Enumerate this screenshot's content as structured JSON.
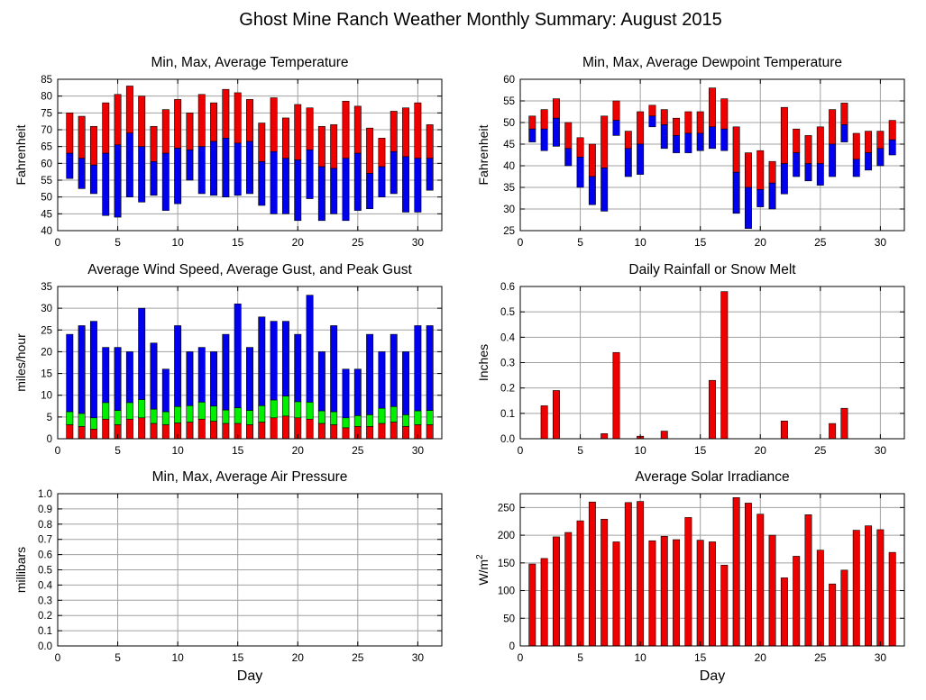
{
  "page": {
    "title": "Ghost Mine Ranch Weather Monthly Summary: August 2015",
    "xlabel": "Day"
  },
  "colors": {
    "red": "#ee0000",
    "blue": "#0000ee",
    "green": "#00ee00",
    "grid": "#a0a0a0"
  },
  "chart_data": [
    {
      "id": "temperature",
      "type": "bar",
      "title": "Min, Max, Average Temperature",
      "ylabel": "Fahrenheit",
      "xlabel": "",
      "xlim": [
        0,
        32
      ],
      "xticks": [
        0,
        5,
        10,
        15,
        20,
        25,
        30
      ],
      "ylim": [
        40,
        85
      ],
      "yticks": [
        40,
        45,
        50,
        55,
        60,
        65,
        70,
        75,
        80,
        85
      ],
      "grid": true,
      "x": [
        1,
        2,
        3,
        4,
        5,
        6,
        7,
        8,
        9,
        10,
        11,
        12,
        13,
        14,
        15,
        16,
        17,
        18,
        19,
        20,
        21,
        22,
        23,
        24,
        25,
        26,
        27,
        28,
        29,
        30,
        31
      ],
      "min": [
        55.5,
        52.5,
        51,
        44.5,
        44,
        50,
        48.5,
        50.5,
        46,
        48,
        55,
        51,
        50.5,
        50,
        50.5,
        51,
        47.5,
        45,
        45,
        43,
        49.5,
        43,
        45,
        43,
        46,
        46.5,
        50,
        51,
        45.5,
        45.5,
        52
      ],
      "avg": [
        63,
        61.5,
        59.5,
        63,
        65.5,
        69,
        65,
        60.5,
        63,
        64.5,
        64,
        65,
        66.5,
        67.5,
        66,
        66.5,
        60.5,
        63.5,
        61.5,
        61,
        64,
        59,
        58.5,
        61.5,
        63,
        57,
        59,
        63.5,
        62,
        61.5,
        61.5
      ],
      "max": [
        75,
        74,
        71,
        78,
        80.5,
        83,
        80,
        71,
        76,
        79,
        75,
        80.5,
        78,
        82,
        81,
        79,
        72,
        79.5,
        73.5,
        77.5,
        76.5,
        71,
        71.5,
        78.5,
        77,
        70.5,
        67.5,
        75.5,
        76.5,
        78,
        71.5
      ]
    },
    {
      "id": "dewpoint",
      "type": "bar",
      "title": "Min, Max, Average Dewpoint Temperature",
      "ylabel": "Fahrenheit",
      "xlabel": "",
      "xlim": [
        0,
        32
      ],
      "xticks": [
        0,
        5,
        10,
        15,
        20,
        25,
        30
      ],
      "ylim": [
        25,
        60
      ],
      "yticks": [
        25,
        30,
        35,
        40,
        45,
        50,
        55,
        60
      ],
      "grid": true,
      "x": [
        1,
        2,
        3,
        4,
        5,
        6,
        7,
        8,
        9,
        10,
        11,
        12,
        13,
        14,
        15,
        16,
        17,
        18,
        19,
        20,
        21,
        22,
        23,
        24,
        25,
        26,
        27,
        28,
        29,
        30,
        31
      ],
      "min": [
        45.5,
        43.5,
        44.5,
        40,
        35,
        31,
        29.5,
        47,
        37.5,
        38,
        49,
        44,
        43,
        43,
        43.5,
        44,
        43.5,
        29,
        25.5,
        30.5,
        30,
        33.5,
        37.5,
        36.5,
        35.5,
        37.5,
        45.5,
        37.5,
        39,
        40,
        42.5
      ],
      "avg": [
        48.5,
        48.5,
        51,
        44,
        42,
        37.5,
        39.5,
        50.5,
        44,
        45,
        51.5,
        49.5,
        47,
        47.5,
        47.5,
        49,
        48.5,
        38.5,
        35,
        34.5,
        36,
        40.5,
        43,
        40.5,
        40.5,
        45,
        49.5,
        41.5,
        43,
        44,
        46
      ],
      "max": [
        51.5,
        53,
        55.5,
        50,
        46.5,
        45,
        51.5,
        55,
        48,
        52.5,
        54,
        53,
        51,
        52.5,
        52.5,
        58,
        55.5,
        49,
        43,
        43.5,
        41,
        53.5,
        48.5,
        47,
        49,
        53,
        54.5,
        47.5,
        48,
        48,
        50.5
      ]
    },
    {
      "id": "wind",
      "type": "bar",
      "title": "Average Wind Speed, Average Gust, and Peak Gust",
      "ylabel": "miles/hour",
      "xlabel": "",
      "xlim": [
        0,
        32
      ],
      "xticks": [
        0,
        5,
        10,
        15,
        20,
        25,
        30
      ],
      "ylim": [
        0,
        35
      ],
      "yticks": [
        0,
        5,
        10,
        15,
        20,
        25,
        30,
        35
      ],
      "grid": true,
      "x": [
        1,
        2,
        3,
        4,
        5,
        6,
        7,
        8,
        9,
        10,
        11,
        12,
        13,
        14,
        15,
        16,
        17,
        18,
        19,
        20,
        21,
        22,
        23,
        24,
        25,
        26,
        27,
        28,
        29,
        30,
        31
      ],
      "avg_speed": [
        3.2,
        2.8,
        2.2,
        4.5,
        3.2,
        4.5,
        4.8,
        3.5,
        3.2,
        3.6,
        3.8,
        4.5,
        4.0,
        3.5,
        3.5,
        3.2,
        3.8,
        4.8,
        5.2,
        4.8,
        4.5,
        3.5,
        3.2,
        2.5,
        2.8,
        2.8,
        3.5,
        3.8,
        2.8,
        3.2,
        3.2
      ],
      "avg_gust": [
        6.2,
        5.8,
        4.8,
        8.3,
        6.5,
        8.3,
        9.0,
        6.8,
        6.2,
        7.4,
        7.6,
        8.4,
        7.5,
        6.6,
        7.1,
        6.5,
        7.6,
        8.9,
        9.8,
        8.5,
        8.4,
        6.4,
        6.2,
        4.8,
        5.3,
        5.5,
        7.0,
        7.4,
        5.5,
        6.4,
        6.5
      ],
      "peak_gust": [
        24,
        26,
        27,
        21,
        21,
        20,
        30,
        22,
        16,
        26,
        20,
        21,
        20,
        24,
        31,
        21,
        28,
        27,
        27,
        24,
        33,
        20,
        26,
        16,
        16,
        24,
        20,
        24,
        20,
        26,
        26
      ]
    },
    {
      "id": "rain",
      "type": "bar",
      "title": "Daily Rainfall or Snow Melt",
      "ylabel": "Inches",
      "xlabel": "",
      "xlim": [
        0,
        32
      ],
      "xticks": [
        0,
        5,
        10,
        15,
        20,
        25,
        30
      ],
      "ylim": [
        0,
        0.6
      ],
      "yticks": [
        0,
        0.1,
        0.2,
        0.3,
        0.4,
        0.5,
        0.6
      ],
      "ytick_labels": [
        "0.0",
        "0.1",
        "0.2",
        "0.3",
        "0.4",
        "0.5",
        "0.6"
      ],
      "grid": true,
      "x": [
        1,
        2,
        3,
        4,
        5,
        6,
        7,
        8,
        9,
        10,
        11,
        12,
        13,
        14,
        15,
        16,
        17,
        18,
        19,
        20,
        21,
        22,
        23,
        24,
        25,
        26,
        27,
        28,
        29,
        30,
        31
      ],
      "values": [
        0,
        0.13,
        0.19,
        0,
        0,
        0,
        0.02,
        0.34,
        0,
        0.01,
        0,
        0.03,
        0,
        0,
        0,
        0.23,
        0.58,
        0,
        0,
        0,
        0,
        0.07,
        0,
        0,
        0,
        0.06,
        0.12,
        0,
        0,
        0,
        0
      ]
    },
    {
      "id": "pressure",
      "type": "bar",
      "title": "Min, Max, Average Air Pressure",
      "ylabel": "millibars",
      "xlabel": "Day",
      "xlim": [
        0,
        32
      ],
      "xticks": [
        0,
        5,
        10,
        15,
        20,
        25,
        30
      ],
      "ylim": [
        0,
        1
      ],
      "yticks": [
        0,
        0.1,
        0.2,
        0.3,
        0.4,
        0.5,
        0.6,
        0.7,
        0.8,
        0.9,
        1.0
      ],
      "ytick_labels": [
        "0.0",
        "0.1",
        "0.2",
        "0.3",
        "0.4",
        "0.5",
        "0.6",
        "0.7",
        "0.8",
        "0.9",
        "1.0"
      ],
      "grid": true,
      "x": [],
      "values": []
    },
    {
      "id": "solar",
      "type": "bar",
      "title": "Average Solar Irradiance",
      "ylabel": "W/m",
      "ylabel_sup": "2",
      "xlabel": "Day",
      "xlim": [
        0,
        32
      ],
      "xticks": [
        0,
        5,
        10,
        15,
        20,
        25,
        30
      ],
      "ylim": [
        0,
        275
      ],
      "yticks": [
        0,
        50,
        100,
        150,
        200,
        250
      ],
      "grid": true,
      "x": [
        1,
        2,
        3,
        4,
        5,
        6,
        7,
        8,
        9,
        10,
        11,
        12,
        13,
        14,
        15,
        16,
        17,
        18,
        19,
        20,
        21,
        22,
        23,
        24,
        25,
        26,
        27,
        28,
        29,
        30,
        31
      ],
      "values": [
        148,
        158,
        197,
        205,
        226,
        260,
        229,
        188,
        259,
        261,
        190,
        198,
        192,
        232,
        191,
        188,
        146,
        268,
        258,
        238,
        200,
        123,
        162,
        237,
        173,
        112,
        137,
        209,
        217,
        210,
        169
      ]
    }
  ]
}
